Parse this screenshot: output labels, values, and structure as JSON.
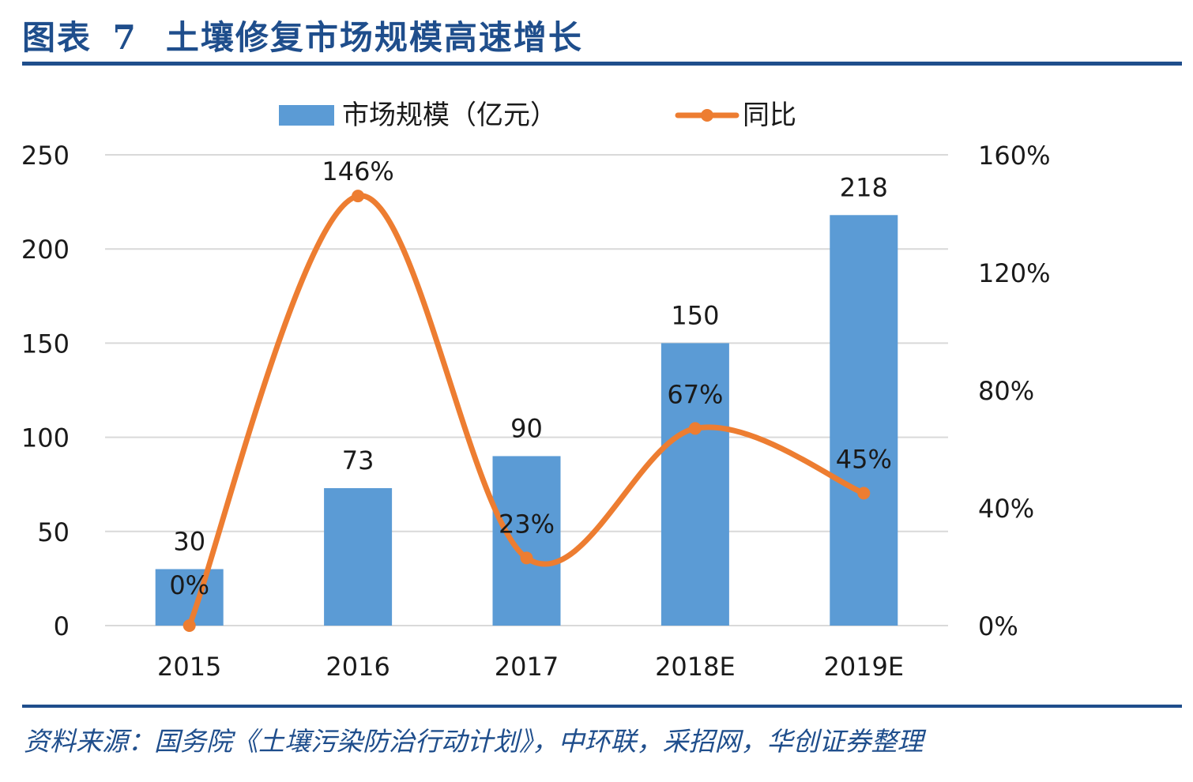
{
  "header": {
    "figure_label": "图表",
    "figure_number": "7",
    "title": "土壤修复市场规模高速增长"
  },
  "footer": {
    "source": "资料来源：国务院《土壤污染防治行动计划》，中环联，采招网，华创证券整理"
  },
  "colors": {
    "bar": "#5b9bd5",
    "line": "#ed7d31",
    "grid": "#d9d9d9",
    "brand": "#1f4e8c"
  },
  "chart_data": {
    "type": "bar",
    "categories": [
      "2015",
      "2016",
      "2017",
      "2018E",
      "2019E"
    ],
    "series": [
      {
        "name": "市场规模（亿元）",
        "type": "bar",
        "axis": "left",
        "values": [
          30,
          73,
          90,
          150,
          218
        ],
        "labels": [
          "30",
          "73",
          "90",
          "150",
          "218"
        ]
      },
      {
        "name": "同比",
        "type": "line",
        "axis": "right",
        "smooth": true,
        "values": [
          0,
          146,
          23,
          67,
          45
        ],
        "labels": [
          "0%",
          "146%",
          "23%",
          "67%",
          "45%"
        ]
      }
    ],
    "y_left": {
      "min": 0,
      "max": 250,
      "ticks": [
        "0",
        "50",
        "100",
        "150",
        "200",
        "250"
      ]
    },
    "y_right": {
      "min": 0,
      "max": 160,
      "ticks": [
        "0%",
        "40%",
        "80%",
        "120%",
        "160%"
      ]
    },
    "grid": true,
    "legend_position": "top"
  }
}
